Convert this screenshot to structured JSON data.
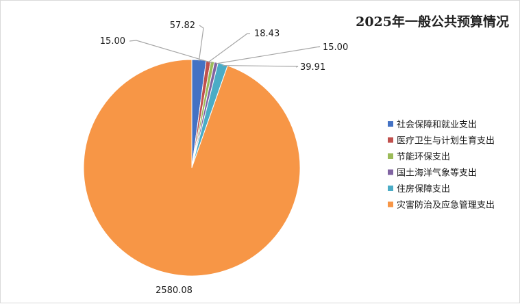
{
  "chart_data": {
    "type": "pie",
    "title": "2025年一般公共预算情况",
    "categories": [
      "社会保障和就业支出",
      "医疗卫生与计划生育支出",
      "节能环保支出",
      "国土海洋气象等支出",
      "住房保障支出",
      "灾害防治及应急管理支出"
    ],
    "values": [
      57.82,
      18.43,
      15.0,
      15.0,
      39.91,
      2580.08
    ],
    "value_labels": [
      "57.82",
      "18.43",
      "15.00",
      "15.00",
      "39.91",
      "2580.08"
    ],
    "colors": [
      "#4472c4",
      "#c0504d",
      "#9bbb59",
      "#8064a2",
      "#4bacc6",
      "#f79646"
    ],
    "legend_position": "right"
  }
}
